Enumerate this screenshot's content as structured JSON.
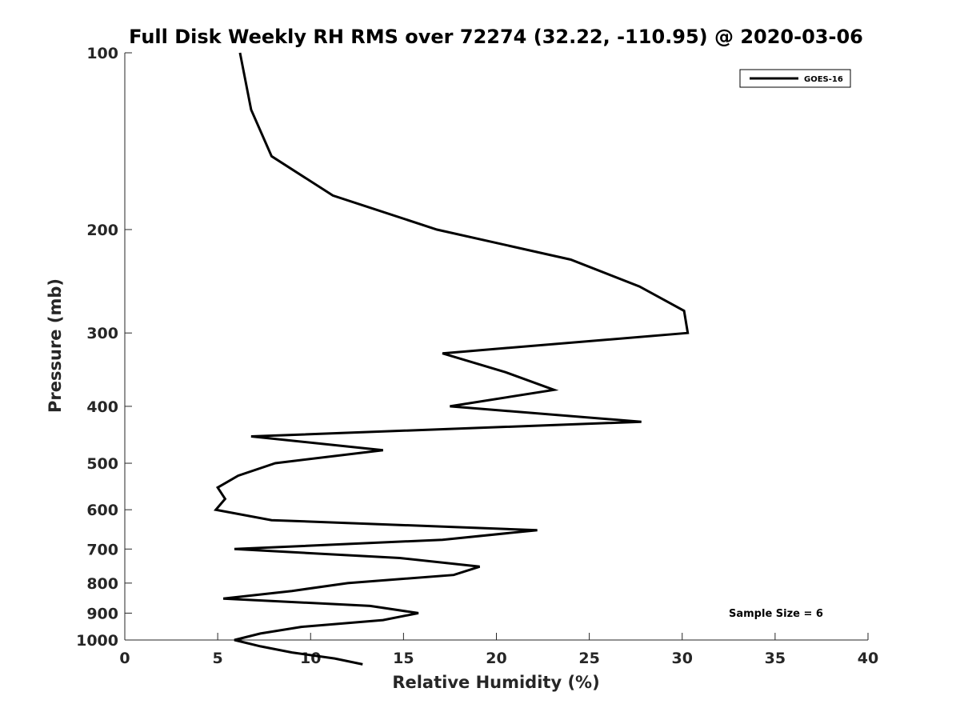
{
  "chart_data": {
    "type": "line",
    "title": "Full Disk Weekly RH RMS over 72274 (32.22, -110.95) @ 2020-03-06",
    "xlabel": "Relative Humidity (%)",
    "ylabel": "Pressure (mb)",
    "xlim": [
      0,
      40
    ],
    "ylim": [
      100,
      1000
    ],
    "y_scale": "log",
    "y_reversed": true,
    "x_ticks": [
      0,
      5,
      10,
      15,
      20,
      25,
      30,
      35,
      40
    ],
    "y_ticks": [
      100,
      200,
      300,
      400,
      500,
      600,
      700,
      800,
      900,
      1000
    ],
    "grid": false,
    "legend_position": "top-right",
    "series": [
      {
        "name": "GOES-16",
        "color": "#000000",
        "points": [
          [
            6.2,
            100
          ],
          [
            6.8,
            125
          ],
          [
            7.9,
            150
          ],
          [
            11.2,
            175
          ],
          [
            16.8,
            200
          ],
          [
            24.0,
            225
          ],
          [
            27.7,
            250
          ],
          [
            30.1,
            275
          ],
          [
            30.3,
            300
          ],
          [
            17.1,
            325
          ],
          [
            20.5,
            350
          ],
          [
            23.1,
            375
          ],
          [
            17.5,
            400
          ],
          [
            27.8,
            425
          ],
          [
            6.8,
            450
          ],
          [
            13.9,
            475
          ],
          [
            8.1,
            500
          ],
          [
            6.1,
            525
          ],
          [
            5.0,
            550
          ],
          [
            5.4,
            575
          ],
          [
            4.9,
            600
          ],
          [
            7.9,
            625
          ],
          [
            22.2,
            650
          ],
          [
            17.1,
            675
          ],
          [
            5.9,
            700
          ],
          [
            14.8,
            725
          ],
          [
            19.1,
            750
          ],
          [
            17.7,
            775
          ],
          [
            12.0,
            800
          ],
          [
            9.0,
            825
          ],
          [
            5.3,
            850
          ],
          [
            13.2,
            875
          ],
          [
            15.8,
            900
          ],
          [
            13.9,
            925
          ],
          [
            9.5,
            950
          ],
          [
            7.3,
            975
          ],
          [
            5.9,
            1000
          ],
          [
            7.3,
            1025
          ],
          [
            9.0,
            1050
          ],
          [
            11.3,
            1075
          ],
          [
            12.8,
            1100
          ]
        ]
      }
    ],
    "annotation": "Sample Size = 6"
  }
}
